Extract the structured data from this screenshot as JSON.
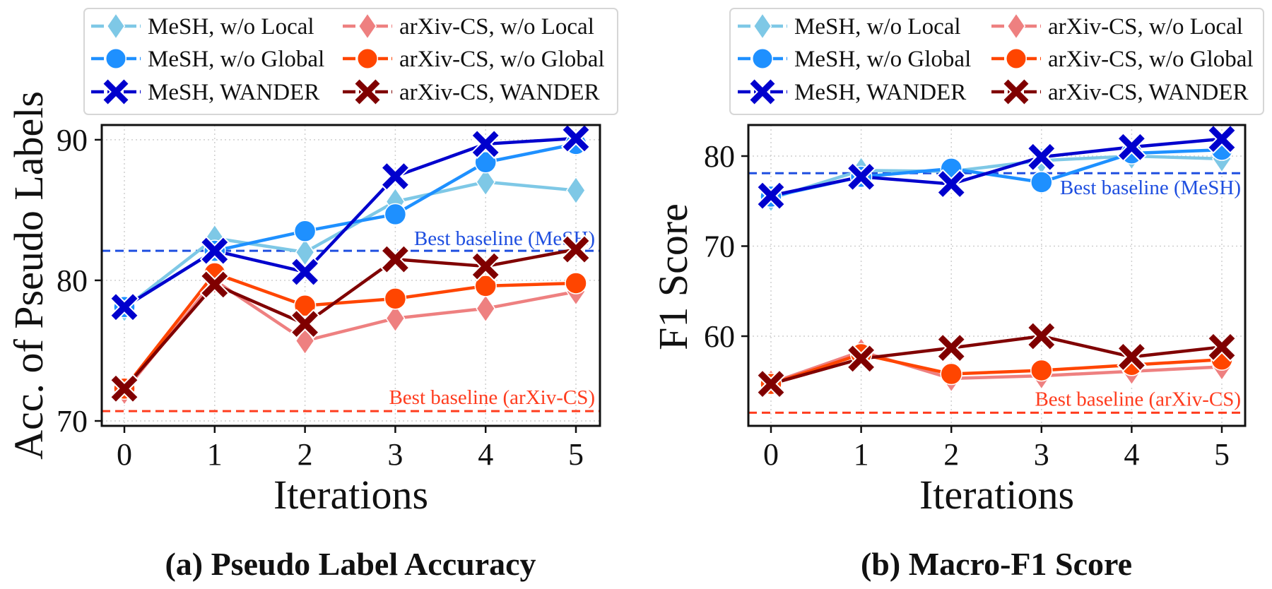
{
  "chart_data": [
    {
      "type": "line",
      "panel_title": "(a) Pseudo Label Accuracy",
      "xlabel": "Iterations",
      "ylabel": "Acc. of Pseudo Labels",
      "x": [
        0,
        1,
        2,
        3,
        4,
        5
      ],
      "xticks": [
        "0",
        "1",
        "2",
        "3",
        "4",
        "5"
      ],
      "xlim": [
        -0.25,
        5.26
      ],
      "yticks": [
        70,
        80,
        90
      ],
      "ytick_labels": [
        "70",
        "80",
        "90"
      ],
      "ylim": [
        69.65,
        91.05
      ],
      "grid": true,
      "legend_placement": "top",
      "series": [
        {
          "name": "MeSH, w/o Local",
          "color": "#7ec8e6",
          "marker": "diamond",
          "values": [
            78.0,
            83.0,
            82.0,
            85.6,
            87.0,
            86.4
          ]
        },
        {
          "name": "arXiv-CS, w/o Local",
          "color": "#ee8080",
          "marker": "diamond",
          "values": [
            72.1,
            80.0,
            75.7,
            77.3,
            78.0,
            79.2
          ]
        },
        {
          "name": "MeSH, w/o Global",
          "color": "#1e90ff",
          "marker": "circle",
          "values": [
            78.1,
            82.1,
            83.5,
            84.7,
            88.4,
            89.7
          ]
        },
        {
          "name": "arXiv-CS, w/o Global",
          "color": "#ff4500",
          "marker": "circle",
          "values": [
            72.3,
            80.5,
            78.2,
            78.7,
            79.6,
            79.8
          ]
        },
        {
          "name": "MeSH, WANDER",
          "color": "#0000cd",
          "marker": "x",
          "values": [
            78.1,
            82.1,
            80.6,
            87.4,
            89.7,
            90.1
          ]
        },
        {
          "name": "arXiv-CS, WANDER",
          "color": "#800000",
          "marker": "x",
          "values": [
            72.3,
            79.7,
            76.9,
            81.5,
            81.0,
            82.2
          ]
        }
      ],
      "baselines": [
        {
          "label": "Best baseline (MeSH)",
          "value": 82.1,
          "color": "#1f4fe0"
        },
        {
          "label": "Best baseline (arXiv-CS)",
          "value": 70.7,
          "color": "#ff3c1e"
        }
      ]
    },
    {
      "type": "line",
      "panel_title": "(b) Macro-F1 Score",
      "xlabel": "Iterations",
      "ylabel": "F1 Score",
      "x": [
        0,
        1,
        2,
        3,
        4,
        5
      ],
      "xticks": [
        "0",
        "1",
        "2",
        "3",
        "4",
        "5"
      ],
      "xlim": [
        -0.25,
        5.26
      ],
      "yticks": [
        60,
        70,
        80
      ],
      "ytick_labels": [
        "60",
        "70",
        "80"
      ],
      "ylim": [
        50.04,
        83.45
      ],
      "grid": true,
      "legend_placement": "top",
      "series": [
        {
          "name": "MeSH, w/o Local",
          "color": "#7ec8e6",
          "marker": "diamond",
          "values": [
            75.3,
            78.4,
            78.3,
            79.5,
            80.0,
            79.7
          ]
        },
        {
          "name": "arXiv-CS, w/o Local",
          "color": "#ee8080",
          "marker": "diamond",
          "values": [
            54.8,
            58.3,
            55.3,
            55.6,
            56.1,
            56.6
          ]
        },
        {
          "name": "MeSH, w/o Global",
          "color": "#1e90ff",
          "marker": "circle",
          "values": [
            75.5,
            77.7,
            78.6,
            77.1,
            80.3,
            80.7
          ]
        },
        {
          "name": "arXiv-CS, w/o Global",
          "color": "#ff4500",
          "marker": "circle",
          "values": [
            54.7,
            58.0,
            55.8,
            56.2,
            56.8,
            57.4
          ]
        },
        {
          "name": "MeSH, WANDER",
          "color": "#0000cd",
          "marker": "x",
          "values": [
            75.6,
            77.7,
            76.9,
            79.9,
            81.0,
            81.9
          ]
        },
        {
          "name": "arXiv-CS, WANDER",
          "color": "#800000",
          "marker": "x",
          "values": [
            54.7,
            57.5,
            58.7,
            60.0,
            57.7,
            58.8
          ]
        }
      ],
      "baselines": [
        {
          "label": "Best baseline (MeSH)",
          "value": 78.1,
          "color": "#1f4fe0"
        },
        {
          "label": "Best baseline (arXiv-CS)",
          "value": 51.5,
          "color": "#ff3c1e"
        }
      ]
    }
  ]
}
